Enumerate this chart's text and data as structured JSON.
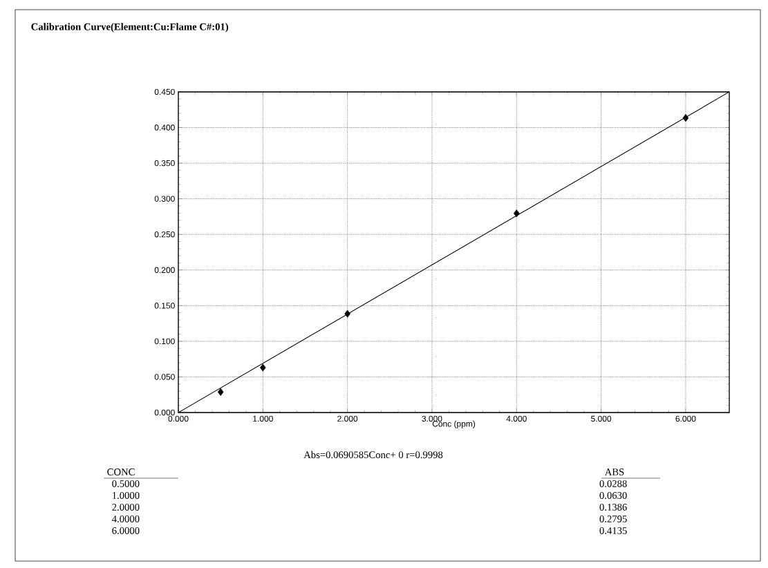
{
  "chart_data": {
    "type": "scatter",
    "title": "Calibration Curve(Element:Cu:Flame C#:01)",
    "xlabel": "Conc (ppm)",
    "xlim": [
      0,
      6.516
    ],
    "ylim": [
      0,
      0.45
    ],
    "xticks": [
      {
        "value": 0,
        "label": "0.000"
      },
      {
        "value": 1,
        "label": "1.000"
      },
      {
        "value": 2,
        "label": "2.000"
      },
      {
        "value": 3,
        "label": "3.000"
      },
      {
        "value": 4,
        "label": "4.000"
      },
      {
        "value": 5,
        "label": "5.000"
      },
      {
        "value": 6,
        "label": "6.000"
      }
    ],
    "yticks": [
      {
        "value": 0,
        "label": "0.000"
      },
      {
        "value": 0.05,
        "label": "0.050"
      },
      {
        "value": 0.1,
        "label": "0.100"
      },
      {
        "value": 0.15,
        "label": "0.150"
      },
      {
        "value": 0.2,
        "label": "0.200"
      },
      {
        "value": 0.25,
        "label": "0.250"
      },
      {
        "value": 0.3,
        "label": "0.300"
      },
      {
        "value": 0.35,
        "label": "0.350"
      },
      {
        "value": 0.4,
        "label": "0.400"
      },
      {
        "value": 0.45,
        "label": "0.450"
      }
    ],
    "grid": true,
    "series": [
      {
        "color": "#000000",
        "marker": "diamond",
        "x": [
          0.5,
          1,
          2,
          4,
          6
        ],
        "values": [
          0.0288,
          0.063,
          0.1386,
          0.2795,
          0.4135
        ]
      },
      {
        "type": "line",
        "marker": "none",
        "color": "#000000",
        "x": [
          0,
          6.516
        ],
        "values": [
          0,
          0.45
        ]
      }
    ],
    "annotations": [
      "Abs=0.0690585Conc+ 0 r=0.9998",
      "CONC",
      "0.5000",
      "1.0000",
      "2.0000",
      "4.0000",
      "6.0000",
      "ABS",
      "0.0288",
      "0.0630",
      "0.1386",
      "0.2795",
      "0.4135"
    ]
  }
}
